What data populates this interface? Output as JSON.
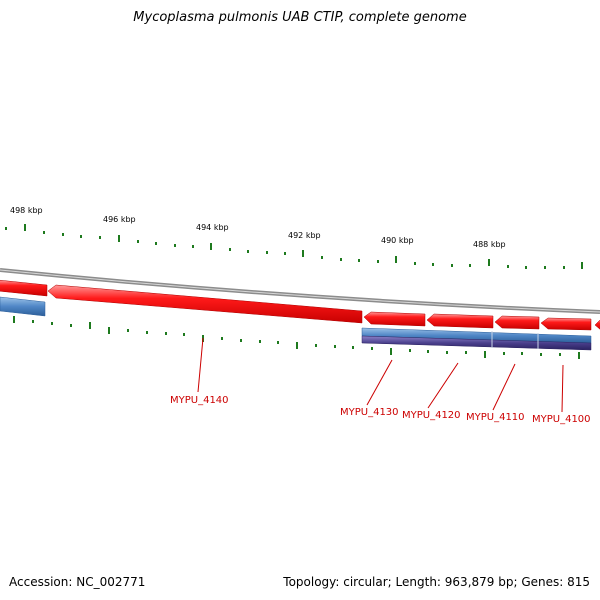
{
  "title": "Mycoplasma pulmonis UAB CTIP, complete genome",
  "footer": {
    "accession": "Accession: NC_002771",
    "summary": "Topology: circular; Length: 963,879 bp; Genes: 815"
  },
  "colors": {
    "backbone": "#8c8c8c",
    "gene_forward": "#ff0000",
    "feature_blue": "#4f86c6",
    "feature_purple": "#4a3f8c",
    "tick": "#1e7a1e",
    "gene_label": "#cc0000"
  },
  "scale_labels": [
    "498 kbp",
    "496 kbp",
    "494 kbp",
    "492 kbp",
    "490 kbp",
    "488 kbp"
  ],
  "gene_labels": [
    "MYPU_4140",
    "MYPU_4130",
    "MYPU_4120",
    "MYPU_4110",
    "MYPU_4100"
  ]
}
